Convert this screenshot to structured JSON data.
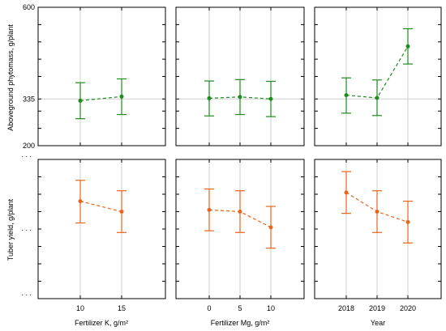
{
  "colors": {
    "top_series": "#1e8c1e",
    "bottom_series": "#e8651a",
    "grid": "#cfcfcf"
  },
  "chart_data": [
    {
      "type": "line",
      "panel": "top-left",
      "categories": [
        "10",
        "15"
      ],
      "series": [
        {
          "values": [
            330,
            342
          ],
          "ci_low": [
            278,
            290
          ],
          "ci_high": [
            382,
            393
          ]
        }
      ],
      "xlabel": "",
      "ylabel": "Aboveground phytomass, g/plant",
      "ylim": [
        200,
        600
      ],
      "yticks": [
        200,
        335,
        600
      ],
      "grid": true
    },
    {
      "type": "line",
      "panel": "top-middle",
      "categories": [
        "0",
        "5",
        "10"
      ],
      "series": [
        {
          "values": [
            337,
            341,
            335
          ],
          "ci_low": [
            286,
            290,
            284
          ],
          "ci_high": [
            387,
            391,
            386
          ]
        }
      ],
      "ylim": [
        200,
        600
      ],
      "grid": true
    },
    {
      "type": "line",
      "panel": "top-right",
      "categories": [
        "2018",
        "2019",
        "2020"
      ],
      "series": [
        {
          "values": [
            346,
            338,
            487
          ],
          "ci_low": [
            294,
            287,
            436
          ],
          "ci_high": [
            396,
            390,
            538
          ]
        }
      ],
      "ylim": [
        200,
        600
      ],
      "grid": true
    },
    {
      "type": "line",
      "panel": "bottom-left",
      "categories": [
        "10",
        "15"
      ],
      "series": [
        {
          "values": [
            0.62,
            0.5
          ],
          "ci_low": [
            0.37,
            0.26
          ],
          "ci_high": [
            0.86,
            0.74
          ]
        }
      ],
      "xlabel": "Fertilizer K, g/m²",
      "ylabel": "Tuber yield, g/plant",
      "ylim": [
        -0.5,
        1.1
      ],
      "yticks_labels": [
        ". . .",
        ". . .",
        ". . ."
      ],
      "grid": true
    },
    {
      "type": "line",
      "panel": "bottom-middle",
      "categories": [
        "0",
        "5",
        "10"
      ],
      "series": [
        {
          "values": [
            0.52,
            0.5,
            0.32
          ],
          "ci_low": [
            0.28,
            0.26,
            0.08
          ],
          "ci_high": [
            0.76,
            0.74,
            0.56
          ]
        }
      ],
      "xlabel": "Fertilizer Mg, g/m²",
      "ylim": [
        -0.5,
        1.1
      ],
      "grid": true
    },
    {
      "type": "line",
      "panel": "bottom-right",
      "categories": [
        "2018",
        "2019",
        "2020"
      ],
      "series": [
        {
          "values": [
            0.72,
            0.5,
            0.38
          ],
          "ci_low": [
            0.48,
            0.26,
            0.14
          ],
          "ci_high": [
            0.96,
            0.74,
            0.62
          ]
        }
      ],
      "xlabel": "Year",
      "ylim": [
        -0.5,
        1.1
      ],
      "grid": true
    }
  ]
}
